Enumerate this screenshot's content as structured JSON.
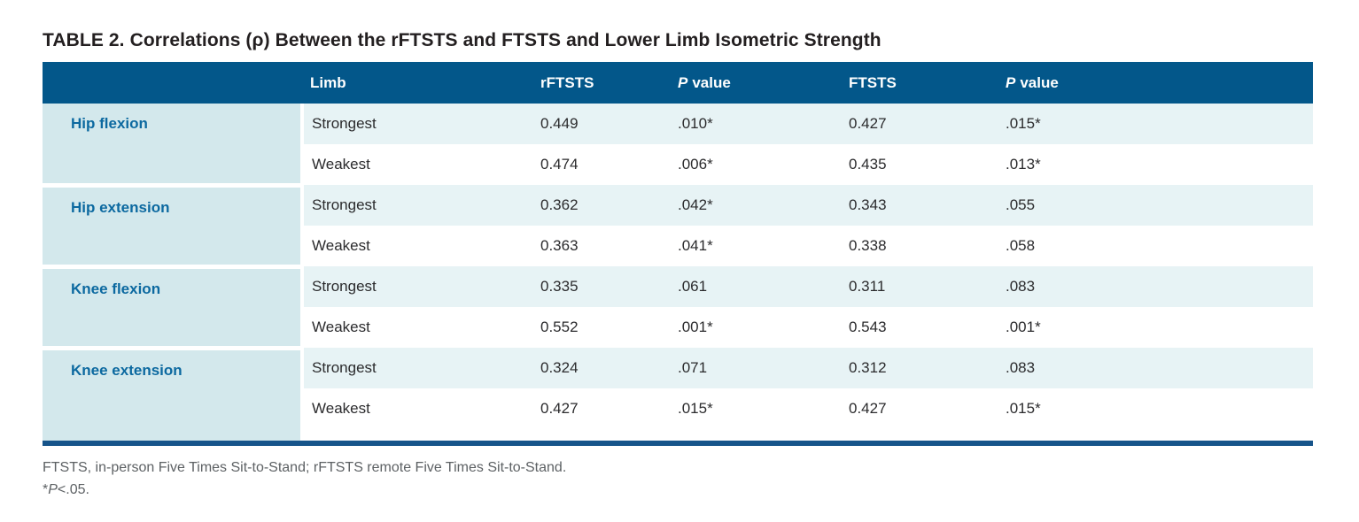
{
  "title": {
    "label": "TABLE 2.",
    "text": "Correlations (ρ) Between the rFTSTS and FTSTS and Lower Limb Isometric Strength"
  },
  "colors": {
    "header_bg": "#03578a",
    "row_tint_bg": "#e7f3f5",
    "label_col_bg": "#d3e8ec",
    "label_text": "#0c69a0",
    "bottom_rule": "#16548a"
  },
  "table": {
    "header": {
      "limb": "Limb",
      "rftsts": "rFTSTS",
      "p_label": "P",
      "p_suffix": "value",
      "ftsts": "FTSTS"
    },
    "groups": [
      {
        "label": "Hip flexion",
        "rows": [
          {
            "limb": "Strongest",
            "rftsts": "0.449",
            "p1": ".010*",
            "ftsts": "0.427",
            "p2": ".015*"
          },
          {
            "limb": "Weakest",
            "rftsts": "0.474",
            "p1": ".006*",
            "ftsts": "0.435",
            "p2": ".013*"
          }
        ]
      },
      {
        "label": "Hip extension",
        "rows": [
          {
            "limb": "Strongest",
            "rftsts": "0.362",
            "p1": ".042*",
            "ftsts": "0.343",
            "p2": ".055"
          },
          {
            "limb": "Weakest",
            "rftsts": "0.363",
            "p1": ".041*",
            "ftsts": "0.338",
            "p2": ".058"
          }
        ]
      },
      {
        "label": "Knee flexion",
        "rows": [
          {
            "limb": "Strongest",
            "rftsts": "0.335",
            "p1": ".061",
            "ftsts": "0.311",
            "p2": ".083"
          },
          {
            "limb": "Weakest",
            "rftsts": "0.552",
            "p1": ".001*",
            "ftsts": "0.543",
            "p2": ".001*"
          }
        ]
      },
      {
        "label": "Knee extension",
        "rows": [
          {
            "limb": "Strongest",
            "rftsts": "0.324",
            "p1": ".071",
            "ftsts": "0.312",
            "p2": ".083"
          },
          {
            "limb": "Weakest",
            "rftsts": "0.427",
            "p1": ".015*",
            "ftsts": "0.427",
            "p2": ".015*"
          }
        ]
      }
    ]
  },
  "footnotes": {
    "line1": "FTSTS, in-person Five Times Sit-to-Stand; rFTSTS remote Five Times Sit-to-Stand.",
    "line2_star": "*",
    "line2_p": "P",
    "line2_rest": "<.05."
  }
}
